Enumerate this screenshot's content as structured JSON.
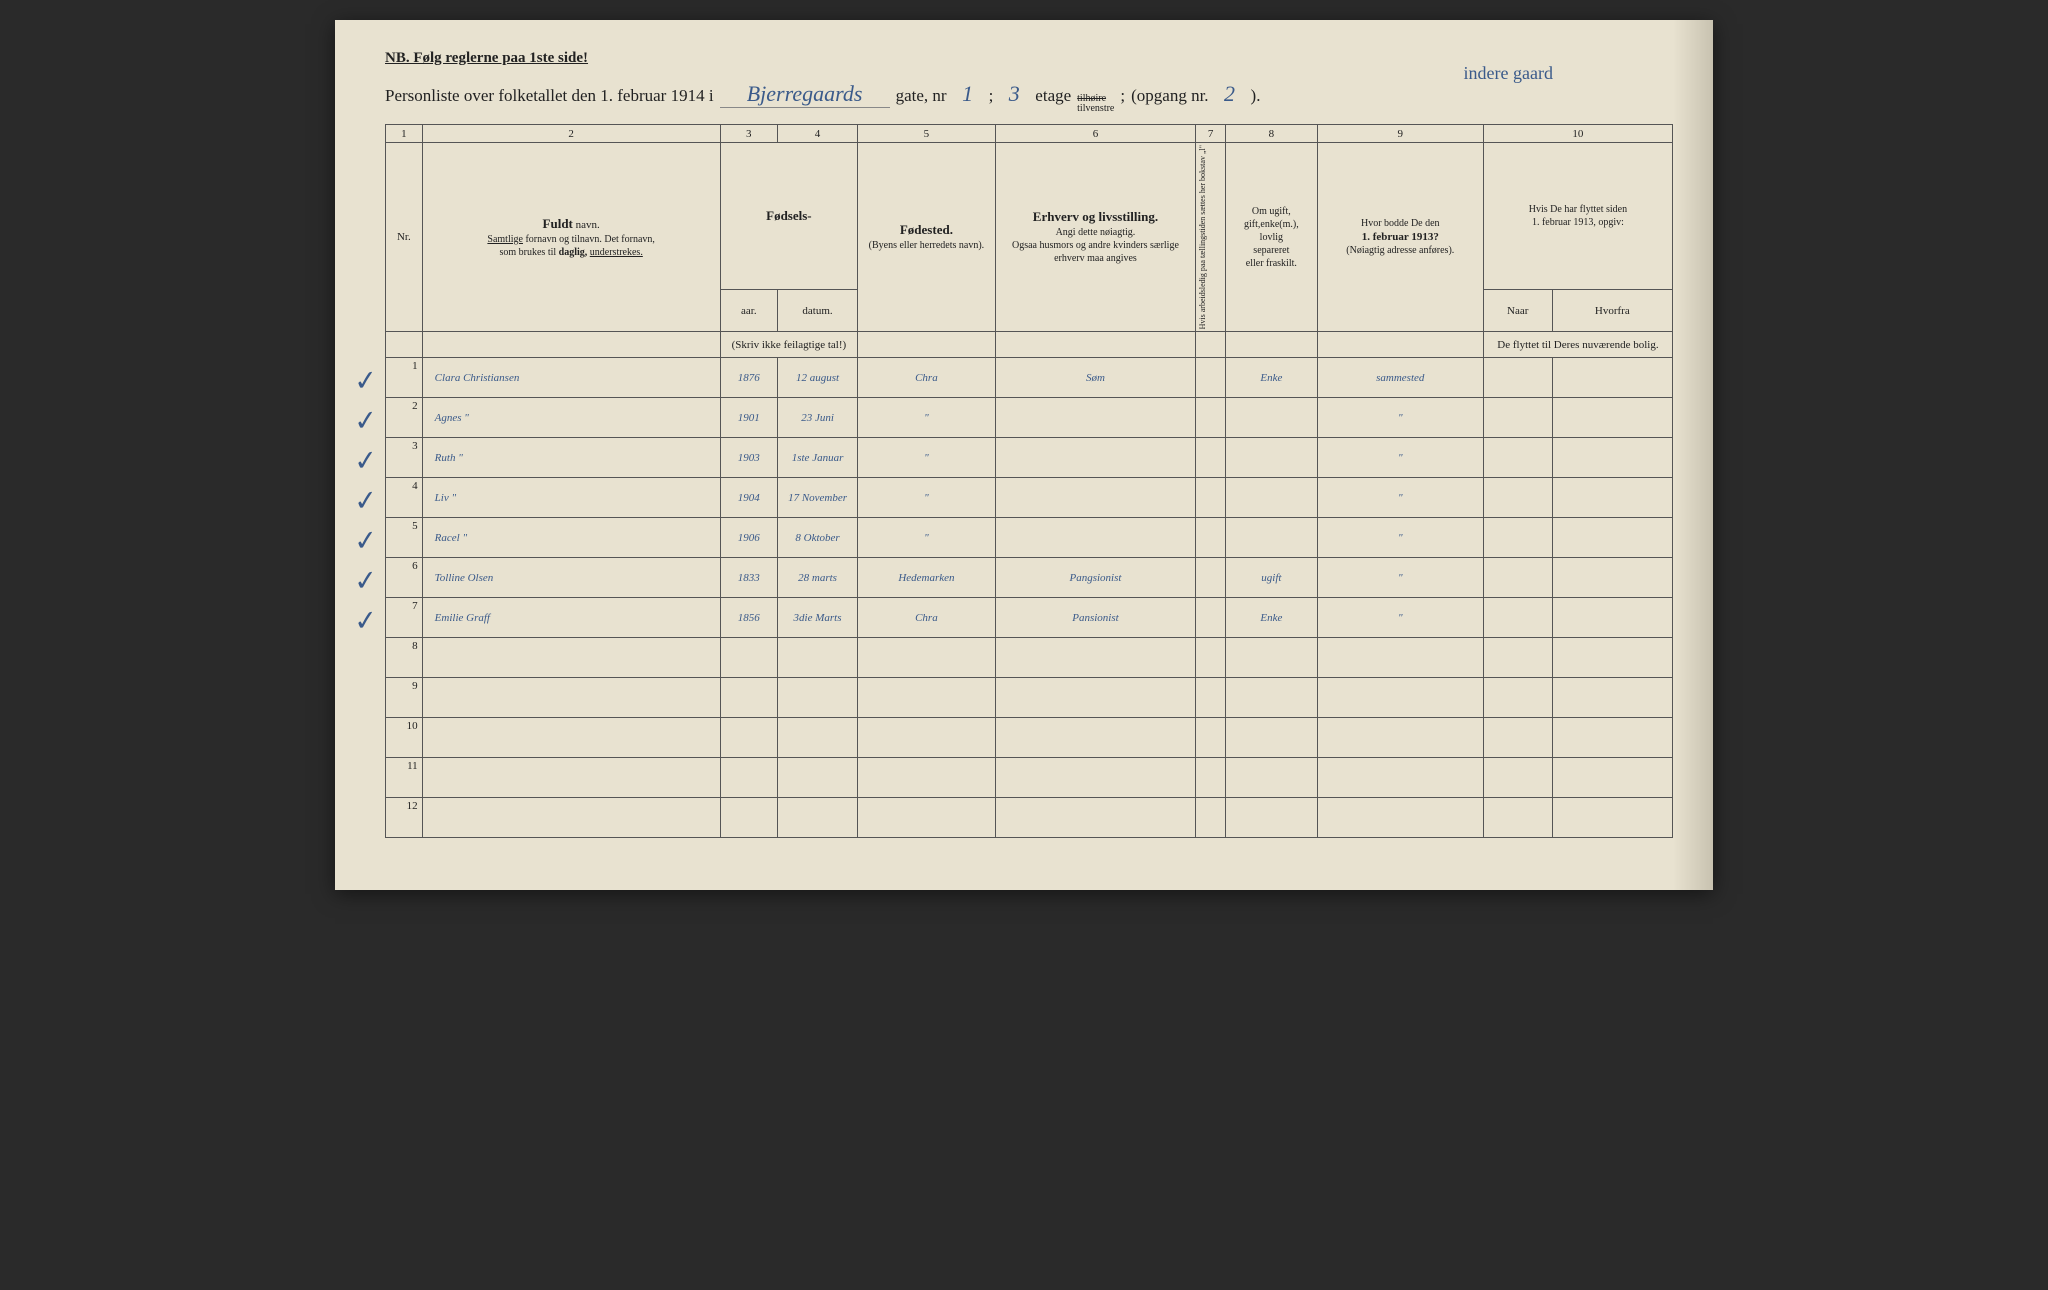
{
  "document": {
    "nb_line": "NB.  Følg reglerne paa 1ste side!",
    "title_prefix": "Personliste over folketallet den 1. februar 1914 i",
    "street_name": "Bjerregaards",
    "gate_label": "gate, nr",
    "gate_nr": "1",
    "semicolon": ";",
    "etage_nr": "3",
    "etage_label": "etage",
    "side_top": "tilhøire",
    "side_bot": "tilvenstre",
    "side_sep": ";",
    "opgang_label": "(opgang nr.",
    "opgang_nr": "2",
    "opgang_close": ").",
    "annotation": "indere gaard"
  },
  "colnums": [
    "1",
    "2",
    "3",
    "4",
    "5",
    "6",
    "7",
    "8",
    "9",
    "10"
  ],
  "headers": {
    "nr": "Nr.",
    "name_bold": "Fuldt",
    "name_norm": "navn.",
    "name_sub1": "Samtlige",
    "name_sub2": "fornavn og tilnavn.  Det fornavn,",
    "name_sub3": "som brukes til",
    "name_sub4": "daglig,",
    "name_sub5": "understrekes.",
    "fodsels": "Fødsels-",
    "aar": "aar.",
    "datum": "datum.",
    "fodsels_note": "(Skriv ikke feilagtige tal!)",
    "fodested": "Fødested.",
    "fodested_sub": "(Byens eller herredets navn).",
    "erhverv": "Erhverv og livsstilling.",
    "erhverv_sub1": "Angi dette nøiagtig.",
    "erhverv_sub2": "Ogsaa husmors og andre kvinders særlige erhverv maa angives",
    "col7": "Hvis arbeidsledig paa tællingstiden sættes her bokstav „l\"",
    "col8_1": "Om ugift,",
    "col8_2": "gift,enke(m.),",
    "col8_3": "lovlig",
    "col8_4": "separeret",
    "col8_5": "eller fraskilt.",
    "col9_1": "Hvor bodde De den",
    "col9_2": "1. februar 1913?",
    "col9_3": "(Nøiagtig adresse anføres).",
    "col10_1": "Hvis De har flyttet siden",
    "col10_2": "1. februar 1913, opgiv:",
    "col10_naar": "Naar",
    "col10_hvorfra": "Hvorfra",
    "col10_3": "De flyttet til Deres nuværende bolig."
  },
  "rows": [
    {
      "nr": "1",
      "check": "✓",
      "name": "Clara Christiansen",
      "year": "1876",
      "date": "12 august",
      "birthplace": "Chra",
      "occupation": "Søm",
      "marital": "Enke",
      "residence": "sammested",
      "naar": "",
      "hvorfra": ""
    },
    {
      "nr": "2",
      "check": "✓",
      "name": "Agnes        \"",
      "year": "1901",
      "date": "23 Juni",
      "birthplace": "\"",
      "occupation": "",
      "marital": "",
      "residence": "\"",
      "naar": "",
      "hvorfra": ""
    },
    {
      "nr": "3",
      "check": "✓",
      "name": "Ruth          \"",
      "year": "1903",
      "date": "1ste Januar",
      "birthplace": "\"",
      "occupation": "",
      "marital": "",
      "residence": "\"",
      "naar": "",
      "hvorfra": ""
    },
    {
      "nr": "4",
      "check": "✓",
      "name": "Liv            \"",
      "year": "1904",
      "date": "17 November",
      "birthplace": "\"",
      "occupation": "",
      "marital": "",
      "residence": "\"",
      "naar": "",
      "hvorfra": ""
    },
    {
      "nr": "5",
      "check": "✓",
      "name": "Racel         \"",
      "year": "1906",
      "date": "8 Oktober",
      "birthplace": "\"",
      "occupation": "",
      "marital": "",
      "residence": "\"",
      "naar": "",
      "hvorfra": ""
    },
    {
      "nr": "6",
      "check": "✓",
      "name": "Tolline Olsen",
      "year": "1833",
      "date": "28 marts",
      "birthplace": "Hedemarken",
      "occupation": "Pangsionist",
      "marital": "ugift",
      "residence": "\"",
      "naar": "",
      "hvorfra": ""
    },
    {
      "nr": "7",
      "check": "✓",
      "name": "Emilie Graff",
      "year": "1856",
      "date": "3die Marts",
      "birthplace": "Chra",
      "occupation": "Pansionist",
      "marital": "Enke",
      "residence": "\"",
      "naar": "",
      "hvorfra": ""
    },
    {
      "nr": "8",
      "check": "",
      "name": "",
      "year": "",
      "date": "",
      "birthplace": "",
      "occupation": "",
      "marital": "",
      "residence": "",
      "naar": "",
      "hvorfra": ""
    },
    {
      "nr": "9",
      "check": "",
      "name": "",
      "year": "",
      "date": "",
      "birthplace": "",
      "occupation": "",
      "marital": "",
      "residence": "",
      "naar": "",
      "hvorfra": ""
    },
    {
      "nr": "10",
      "check": "",
      "name": "",
      "year": "",
      "date": "",
      "birthplace": "",
      "occupation": "",
      "marital": "",
      "residence": "",
      "naar": "",
      "hvorfra": ""
    },
    {
      "nr": "11",
      "check": "",
      "name": "",
      "year": "",
      "date": "",
      "birthplace": "",
      "occupation": "",
      "marital": "",
      "residence": "",
      "naar": "",
      "hvorfra": ""
    },
    {
      "nr": "12",
      "check": "",
      "name": "",
      "year": "",
      "date": "",
      "birthplace": "",
      "occupation": "",
      "marital": "",
      "residence": "",
      "naar": "",
      "hvorfra": ""
    }
  ],
  "colors": {
    "paper": "#e8e2d0",
    "ink_printed": "#222222",
    "ink_handwritten": "#3a5a8a",
    "border": "#555555"
  }
}
